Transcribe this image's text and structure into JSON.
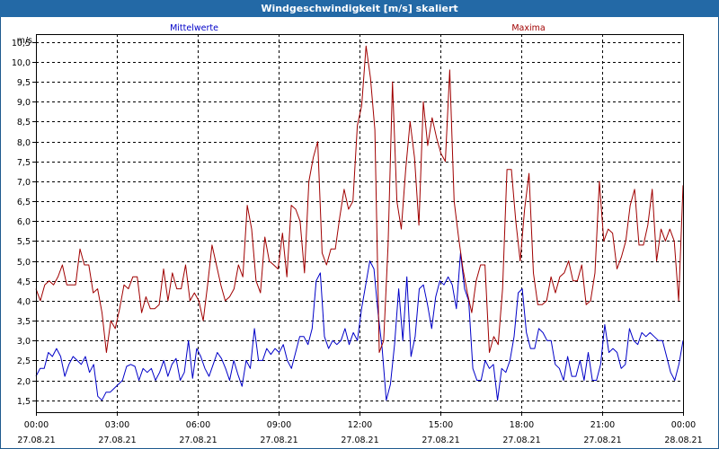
{
  "window": {
    "title": "Windgeschwindigkeit [m/s] skaliert"
  },
  "chart_data": {
    "type": "line",
    "title": "Windgeschwindigkeit [m/s] skaliert",
    "ylabel": "m/s",
    "ylim": [
      1.2,
      10.7
    ],
    "xlim": [
      0,
      24
    ],
    "grid": true,
    "y_ticks": [
      "1,5",
      "2,0",
      "2,5",
      "3,0",
      "3,5",
      "4,0",
      "4,5",
      "5,0",
      "5,5",
      "6,0",
      "6,5",
      "7,0",
      "7,5",
      "8,0",
      "8,5",
      "9,0",
      "9,5",
      "10,0",
      "10,5"
    ],
    "y_tick_values": [
      1.5,
      2.0,
      2.5,
      3.0,
      3.5,
      4.0,
      4.5,
      5.0,
      5.5,
      6.0,
      6.5,
      7.0,
      7.5,
      8.0,
      8.5,
      9.0,
      9.5,
      10.0,
      10.5
    ],
    "x_ticks": [
      {
        "time": "00:00",
        "date": "27.08.21"
      },
      {
        "time": "03:00",
        "date": "27.08.21"
      },
      {
        "time": "06:00",
        "date": "27.08.21"
      },
      {
        "time": "09:00",
        "date": "27.08.21"
      },
      {
        "time": "12:00",
        "date": "27.08.21"
      },
      {
        "time": "15:00",
        "date": "27.08.21"
      },
      {
        "time": "18:00",
        "date": "27.08.21"
      },
      {
        "time": "21:00",
        "date": "27.08.21"
      },
      {
        "time": "00:00",
        "date": "28.08.21"
      }
    ],
    "x_tick_hours": [
      0,
      3,
      6,
      9,
      12,
      15,
      18,
      21,
      24
    ],
    "series": [
      {
        "name": "Mittelwerte",
        "color": "#0000c8",
        "x_step_hours": 0.1667,
        "values": [
          2.1,
          2.3,
          2.3,
          2.7,
          2.6,
          2.8,
          2.6,
          2.1,
          2.4,
          2.6,
          2.5,
          2.4,
          2.6,
          2.2,
          2.4,
          1.6,
          1.5,
          1.7,
          1.7,
          1.8,
          1.9,
          2.0,
          2.35,
          2.4,
          2.35,
          2.0,
          2.3,
          2.2,
          2.3,
          2.0,
          2.2,
          2.5,
          2.1,
          2.4,
          2.55,
          2.0,
          2.2,
          3.0,
          2.05,
          2.8,
          2.6,
          2.3,
          2.1,
          2.4,
          2.7,
          2.55,
          2.3,
          2.0,
          2.5,
          2.15,
          1.85,
          2.5,
          2.3,
          3.3,
          2.5,
          2.5,
          2.8,
          2.65,
          2.8,
          2.7,
          2.9,
          2.5,
          2.3,
          2.7,
          3.1,
          3.1,
          2.9,
          3.3,
          4.5,
          4.7,
          3.1,
          2.8,
          3.0,
          2.9,
          3.0,
          3.3,
          2.9,
          3.2,
          3.0,
          3.8,
          4.4,
          5.0,
          4.8,
          3.7,
          2.8,
          1.5,
          1.9,
          2.9,
          4.3,
          3.0,
          4.6,
          2.6,
          3.1,
          4.3,
          4.4,
          3.9,
          3.3,
          4.1,
          4.5,
          4.4,
          4.6,
          4.4,
          3.8,
          5.2,
          4.3,
          4.0,
          2.3,
          2.0,
          2.0,
          2.5,
          2.3,
          2.4,
          1.5,
          2.3,
          2.2,
          2.5,
          3.1,
          4.2,
          4.3,
          3.2,
          2.8,
          2.8,
          3.3,
          3.2,
          3.0,
          3.0,
          2.4,
          2.3,
          2.0,
          2.6,
          2.1,
          2.1,
          2.5,
          2.0,
          2.7,
          2.0,
          2.0,
          2.4,
          3.4,
          2.7,
          2.8,
          2.7,
          2.3,
          2.4,
          3.3,
          3.0,
          2.9,
          3.2,
          3.1,
          3.2,
          3.1,
          3.0,
          3.0,
          2.6,
          2.2,
          2.0,
          2.4,
          3.0
        ]
      },
      {
        "name": "Maxima",
        "color": "#a00000",
        "x_step_hours": 0.1667,
        "values": [
          4.3,
          4.0,
          4.4,
          4.5,
          4.4,
          4.6,
          4.9,
          4.4,
          4.4,
          4.4,
          5.3,
          4.9,
          4.9,
          4.2,
          4.3,
          3.7,
          2.7,
          3.5,
          3.3,
          3.8,
          4.4,
          4.3,
          4.6,
          4.6,
          3.7,
          4.1,
          3.8,
          3.8,
          3.9,
          4.8,
          4.0,
          4.7,
          4.3,
          4.3,
          4.9,
          4.0,
          4.2,
          4.0,
          3.5,
          4.4,
          5.4,
          4.9,
          4.4,
          4.0,
          4.1,
          4.3,
          4.9,
          4.6,
          6.4,
          5.8,
          4.5,
          4.2,
          5.6,
          5.0,
          4.9,
          4.8,
          5.7,
          4.6,
          6.4,
          6.3,
          6.0,
          4.7,
          7.0,
          7.6,
          8.0,
          5.2,
          4.9,
          5.3,
          5.3,
          6.1,
          6.8,
          6.3,
          6.5,
          8.4,
          8.9,
          10.4,
          9.6,
          8.3,
          2.7,
          3.0,
          5.4,
          9.5,
          6.5,
          5.8,
          7.3,
          8.5,
          7.6,
          5.9,
          9.0,
          7.9,
          8.6,
          8.1,
          7.7,
          7.5,
          9.8,
          6.5,
          5.6,
          4.8,
          4.2,
          3.7,
          4.5,
          4.9,
          4.9,
          2.7,
          3.1,
          2.9,
          4.3,
          7.3,
          7.3,
          6.0,
          5.0,
          6.3,
          7.2,
          4.7,
          3.9,
          3.9,
          4.0,
          4.6,
          4.2,
          4.6,
          4.7,
          5.0,
          4.5,
          4.5,
          4.9,
          3.9,
          4.0,
          4.7,
          7.0,
          5.5,
          5.8,
          5.7,
          4.8,
          5.1,
          5.5,
          6.4,
          6.8,
          5.4,
          5.4,
          5.9,
          6.8,
          5.0,
          5.8,
          5.5,
          5.8,
          5.5,
          4.0,
          6.9
        ]
      }
    ]
  }
}
